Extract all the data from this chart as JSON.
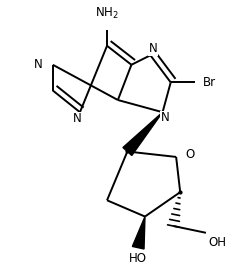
{
  "bg_color": "#ffffff",
  "line_color": "#000000",
  "line_width": 1.4,
  "font_size": 8.5,
  "xlim": [
    0.0,
    1.0
  ],
  "ylim": [
    0.0,
    1.0
  ]
}
